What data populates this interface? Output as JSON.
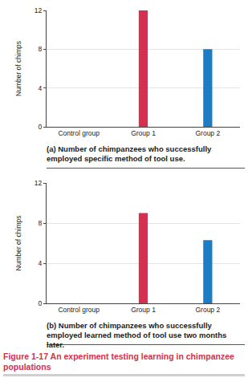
{
  "chart_data": [
    {
      "type": "bar",
      "caption": "(a) Number of chimpanzees who successfully employed specific method of tool use.",
      "y_label": "Number of chimps",
      "categories": [
        "Control group",
        "Group 1",
        "Group 2"
      ],
      "values": [
        0,
        12,
        8
      ],
      "colors": [
        "#d62f4f",
        "#d62f4f",
        "#1d7cc4"
      ],
      "ylim": [
        0,
        12
      ],
      "yticks": [
        0,
        4,
        8,
        12
      ],
      "grid": true
    },
    {
      "type": "bar",
      "caption": "(b) Number of chimpanzees who successfully employed learned method of tool use two months later.",
      "y_label": "Number of chimps",
      "categories": [
        "Control group",
        "Group 1",
        "Group 2"
      ],
      "values": [
        0,
        9,
        6.3
      ],
      "colors": [
        "#d62f4f",
        "#d62f4f",
        "#1d7cc4"
      ],
      "ylim": [
        0,
        12
      ],
      "yticks": [
        0,
        4,
        8,
        12
      ],
      "grid": true
    }
  ],
  "caption": "Figure 1-17 An experiment testing learning in chimpanzee populations"
}
